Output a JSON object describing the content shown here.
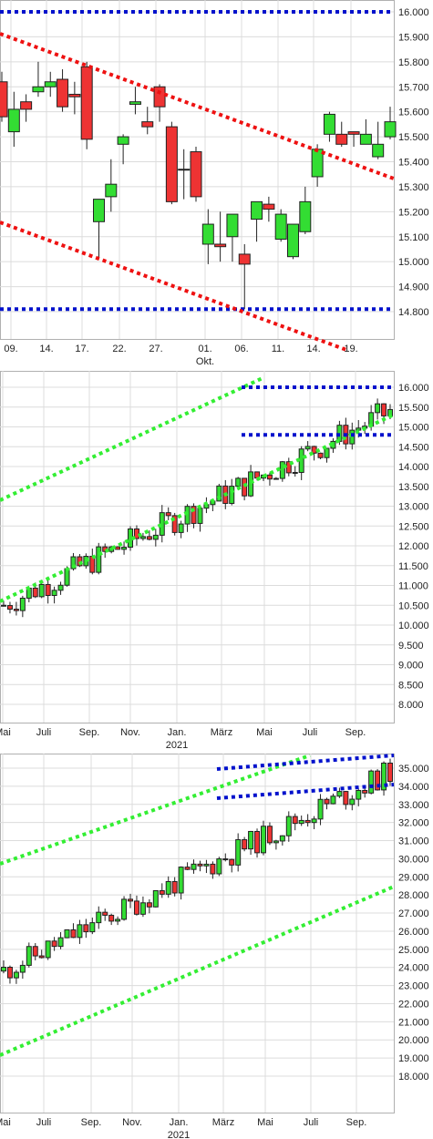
{
  "colors": {
    "up": "#33dd33",
    "down": "#ee3333",
    "red_line": "#ee1111",
    "blue_line": "#0011cc",
    "green_line": "#33ee33",
    "grid": "#dcdcdc"
  },
  "chart_data": [
    {
      "type": "candlestick",
      "title": "",
      "ylim": [
        14700,
        16100
      ],
      "y_ticks": [
        "16.000",
        "15.900",
        "15.800",
        "15.700",
        "15.600",
        "15.500",
        "15.400",
        "15.300",
        "15.200",
        "15.100",
        "15.000",
        "14.900",
        "14.800"
      ],
      "y_tick_values": [
        16000,
        15900,
        15800,
        15700,
        15600,
        15500,
        15400,
        15300,
        15200,
        15100,
        15000,
        14900,
        14800
      ],
      "x_ticks": [
        "09.",
        "14.",
        "17.",
        "22.",
        "27.",
        "01.",
        "06.",
        "11.",
        "14.",
        "19."
      ],
      "x_sublabel": "Okt.",
      "x_sublabel_under": "01.",
      "candles": [
        {
          "o": 15720,
          "h": 15760,
          "l": 15560,
          "c": 15580
        },
        {
          "o": 15520,
          "h": 15680,
          "l": 15460,
          "c": 15610
        },
        {
          "o": 15640,
          "h": 15670,
          "l": 15560,
          "c": 15610
        },
        {
          "o": 15680,
          "h": 15800,
          "l": 15660,
          "c": 15700
        },
        {
          "o": 15700,
          "h": 15760,
          "l": 15660,
          "c": 15720
        },
        {
          "o": 15730,
          "h": 15770,
          "l": 15600,
          "c": 15620
        },
        {
          "o": 15670,
          "h": 15720,
          "l": 15590,
          "c": 15660
        },
        {
          "o": 15780,
          "h": 15800,
          "l": 15450,
          "c": 15490
        },
        {
          "o": 15160,
          "h": 15250,
          "l": 15010,
          "c": 15250
        },
        {
          "o": 15260,
          "h": 15410,
          "l": 15200,
          "c": 15310
        },
        {
          "o": 15470,
          "h": 15510,
          "l": 15390,
          "c": 15500
        },
        {
          "o": 15630,
          "h": 15700,
          "l": 15590,
          "c": 15640
        },
        {
          "o": 15560,
          "h": 15620,
          "l": 15510,
          "c": 15540
        },
        {
          "o": 15700,
          "h": 15710,
          "l": 15560,
          "c": 15620
        },
        {
          "o": 15540,
          "h": 15560,
          "l": 15230,
          "c": 15240
        },
        {
          "o": 15370,
          "h": 15450,
          "l": 15250,
          "c": 15370
        },
        {
          "o": 15440,
          "h": 15460,
          "l": 15240,
          "c": 15260
        },
        {
          "o": 15070,
          "h": 15210,
          "l": 14990,
          "c": 15150
        },
        {
          "o": 15070,
          "h": 15200,
          "l": 15000,
          "c": 15060
        },
        {
          "o": 15100,
          "h": 15190,
          "l": 15000,
          "c": 15190
        },
        {
          "o": 15030,
          "h": 15070,
          "l": 14810,
          "c": 14990
        },
        {
          "o": 15170,
          "h": 15240,
          "l": 15080,
          "c": 15240
        },
        {
          "o": 15230,
          "h": 15260,
          "l": 15160,
          "c": 15210
        },
        {
          "o": 15090,
          "h": 15210,
          "l": 15080,
          "c": 15190
        },
        {
          "o": 15020,
          "h": 15150,
          "l": 15010,
          "c": 15150
        },
        {
          "o": 15120,
          "h": 15300,
          "l": 15110,
          "c": 15240
        },
        {
          "o": 15340,
          "h": 15470,
          "l": 15300,
          "c": 15450
        },
        {
          "o": 15510,
          "h": 15600,
          "l": 15480,
          "c": 15590
        },
        {
          "o": 15510,
          "h": 15560,
          "l": 15460,
          "c": 15470
        },
        {
          "o": 15520,
          "h": 15520,
          "l": 15460,
          "c": 15510
        },
        {
          "o": 15470,
          "h": 15570,
          "l": 15470,
          "c": 15510
        },
        {
          "o": 15420,
          "h": 15560,
          "l": 15410,
          "c": 15470
        },
        {
          "o": 15500,
          "h": 15620,
          "l": 15490,
          "c": 15560
        }
      ]
    },
    {
      "type": "candlestick",
      "title": "",
      "ylim": [
        7800,
        16200
      ],
      "y_ticks": [
        "16.000",
        "15.500",
        "15.000",
        "14.500",
        "14.000",
        "13.500",
        "13.000",
        "12.500",
        "12.000",
        "11.500",
        "11.000",
        "10.500",
        "10.000",
        "9.500",
        "9.000",
        "8.500",
        "8.000"
      ],
      "y_tick_values": [
        16000,
        15500,
        15000,
        14500,
        14000,
        13500,
        13000,
        12500,
        12000,
        11500,
        11000,
        10500,
        10000,
        9500,
        9000,
        8500,
        8000
      ],
      "x_ticks": [
        "Mai",
        "Juli",
        "Sep.",
        "Nov.",
        "Jan.",
        "März",
        "Mai",
        "Juli",
        "Sep."
      ],
      "x_sublabel": "2021",
      "x_sublabel_under": "Jan.",
      "candles": []
    },
    {
      "type": "candlestick",
      "title": "",
      "ylim": [
        17500,
        35700
      ],
      "y_ticks": [
        "35.000",
        "34.000",
        "33.000",
        "32.000",
        "31.000",
        "30.000",
        "29.000",
        "28.000",
        "27.000",
        "26.000",
        "25.000",
        "24.000",
        "23.000",
        "22.000",
        "21.000",
        "20.000",
        "19.000",
        "18.000"
      ],
      "y_tick_values": [
        35000,
        34000,
        33000,
        32000,
        31000,
        30000,
        29000,
        28000,
        27000,
        26000,
        25000,
        24000,
        23000,
        22000,
        21000,
        20000,
        19000,
        18000
      ],
      "x_ticks": [
        "Mai",
        "Juli",
        "Sep.",
        "Nov.",
        "Jan.",
        "März",
        "Mai",
        "Juli",
        "Sep."
      ],
      "x_sublabel": "2021",
      "x_sublabel_under": "Jan.",
      "candles": []
    }
  ]
}
